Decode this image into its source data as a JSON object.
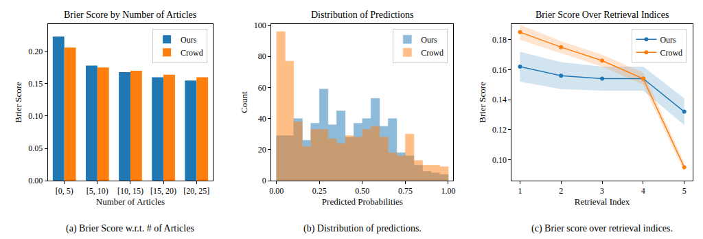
{
  "chart_data": [
    {
      "type": "bar",
      "title": "Brier Score by Number of Articles",
      "caption": "(a) Brier Score w.r.t. # of Articles",
      "x_label": "Number of Articles",
      "y_label": "Brier Score",
      "categories": [
        "[0, 5)",
        "[5, 10)",
        "[10, 15)",
        "[15, 20)",
        "[20, 25]"
      ],
      "series": [
        {
          "name": "Ours",
          "color": "#1f77b4",
          "values": [
            0.223,
            0.178,
            0.168,
            0.16,
            0.155
          ]
        },
        {
          "name": "Crowd",
          "color": "#ff7f0e",
          "values": [
            0.206,
            0.175,
            0.17,
            0.164,
            0.16
          ]
        }
      ],
      "ylim": [
        0,
        0.2425
      ],
      "yticks": [
        {
          "value": 0,
          "label": "0.00"
        },
        {
          "value": 0.05,
          "label": "0.05"
        },
        {
          "value": 0.1,
          "label": "0.10"
        },
        {
          "value": 0.15,
          "label": "0.15"
        },
        {
          "value": 0.2,
          "label": "0.20"
        }
      ],
      "legend": "upper right",
      "grid": false
    },
    {
      "type": "histogram",
      "title": "Distribution of Predictions",
      "caption": "(b) Distribution of predictions.",
      "x_label": "Predicted Probabilities",
      "y_label": "Count",
      "bins": [
        0,
        0.05,
        0.1,
        0.15,
        0.2,
        0.25,
        0.3,
        0.35,
        0.4,
        0.45,
        0.5,
        0.55,
        0.6,
        0.65,
        0.7,
        0.75,
        0.8,
        0.85,
        0.9,
        0.95,
        1.0
      ],
      "series": [
        {
          "name": "Ours",
          "color": "#1f77b4",
          "values": [
            29,
            29,
            40,
            26,
            37,
            59,
            36,
            45,
            28,
            37,
            40,
            53,
            35,
            40,
            18,
            16,
            10,
            6,
            5,
            4
          ]
        },
        {
          "name": "Crowd",
          "color": "#ff7f0e",
          "values": [
            96,
            77,
            38,
            22,
            33,
            33,
            27,
            24,
            29,
            28,
            33,
            35,
            28,
            18,
            16,
            30,
            13,
            10,
            10,
            9
          ]
        }
      ],
      "xlim": [
        -0.03,
        1.03
      ],
      "xticks": [
        {
          "value": 0,
          "label": "0.00"
        },
        {
          "value": 0.25,
          "label": "0.25"
        },
        {
          "value": 0.5,
          "label": "0.50"
        },
        {
          "value": 0.75,
          "label": "0.75"
        },
        {
          "value": 1,
          "label": "1.00"
        }
      ],
      "ylim": [
        0,
        101
      ],
      "yticks": [
        0,
        20,
        40,
        60,
        80,
        100
      ],
      "legend": "upper right",
      "grid": false
    },
    {
      "type": "line",
      "title": "Brier Score Over Retrieval Indices",
      "caption": "(c) Brier score over retrieval indices.",
      "x_label": "Retrieval Index",
      "y_label": "Brier Score",
      "x": [
        1,
        2,
        3,
        4,
        5
      ],
      "series": [
        {
          "name": "Ours",
          "color": "#1f77b4",
          "marker": "circle",
          "values": [
            0.162,
            0.156,
            0.154,
            0.154,
            0.132
          ],
          "error": [
            0.01,
            0.009,
            0.008,
            0.008,
            0.009
          ]
        },
        {
          "name": "Crowd",
          "color": "#ff7f0e",
          "marker": "circle",
          "values": [
            0.185,
            0.175,
            0.166,
            0.154,
            0.095
          ],
          "error": [
            0.005,
            0.004,
            0.004,
            0.004,
            0.003
          ]
        }
      ],
      "xlim": [
        0.8,
        5.2
      ],
      "xticks": [
        1,
        2,
        3,
        4,
        5
      ],
      "ylim": [
        0.086,
        0.1905
      ],
      "yticks": [
        {
          "value": 0.1,
          "label": "0.10"
        },
        {
          "value": 0.12,
          "label": "0.12"
        },
        {
          "value": 0.14,
          "label": "0.14"
        },
        {
          "value": 0.16,
          "label": "0.16"
        },
        {
          "value": 0.18,
          "label": "0.18"
        }
      ],
      "legend": "upper right",
      "grid": false
    }
  ]
}
